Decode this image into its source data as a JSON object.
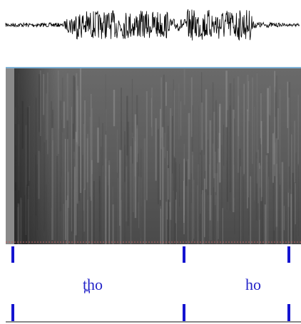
{
  "annotation_tier": {
    "labels": [
      "t̪ho",
      "ho"
    ]
  }
}
